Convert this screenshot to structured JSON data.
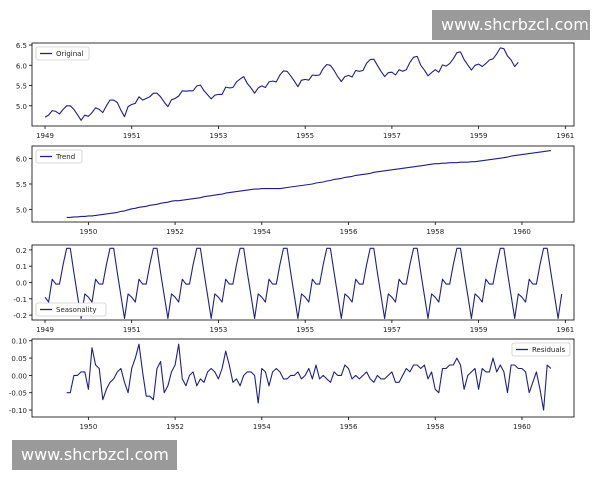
{
  "watermarks": {
    "top": "www.shcrbzcl.com",
    "bottom": "www.shcrbzcl.com"
  },
  "colors": {
    "line": "#1f1f8a",
    "axis": "#000000",
    "background": "#ffffff",
    "watermark": "#9a9a9a"
  },
  "chart_data": [
    {
      "type": "line",
      "legend": "Original",
      "legend_position": "upper-left",
      "x_start": 1949.0,
      "x_step": 0.08333,
      "xlim": [
        1948.7,
        1961.2
      ],
      "ylim": [
        4.5,
        6.55
      ],
      "xticks": [
        1949,
        1951,
        1953,
        1955,
        1957,
        1959,
        1961
      ],
      "xtick_labels": [
        "1949",
        "1951",
        "1953",
        "1955",
        "1957",
        "1959",
        "1961"
      ],
      "yticks": [
        5.0,
        5.5,
        6.0,
        6.5
      ],
      "ytick_labels": [
        "5.0",
        "5.5",
        "6.0",
        "6.5"
      ],
      "values": [
        4.72,
        4.77,
        4.88,
        4.86,
        4.8,
        4.91,
        5.0,
        5.0,
        4.91,
        4.78,
        4.64,
        4.77,
        4.74,
        4.83,
        4.95,
        4.91,
        4.83,
        5.0,
        5.14,
        5.14,
        5.08,
        4.89,
        4.73,
        4.98,
        5.03,
        5.06,
        5.22,
        5.14,
        5.18,
        5.22,
        5.31,
        5.31,
        5.22,
        5.09,
        4.98,
        5.15,
        5.18,
        5.24,
        5.37,
        5.36,
        5.37,
        5.37,
        5.49,
        5.51,
        5.37,
        5.27,
        5.17,
        5.26,
        5.28,
        5.28,
        5.46,
        5.44,
        5.45,
        5.59,
        5.66,
        5.72,
        5.55,
        5.44,
        5.31,
        5.44,
        5.49,
        5.45,
        5.59,
        5.61,
        5.59,
        5.76,
        5.86,
        5.85,
        5.74,
        5.61,
        5.47,
        5.63,
        5.65,
        5.63,
        5.76,
        5.75,
        5.76,
        5.92,
        6.02,
        6.0,
        5.87,
        5.72,
        5.6,
        5.72,
        5.75,
        5.71,
        5.87,
        5.85,
        5.87,
        6.05,
        6.14,
        6.15,
        6.0,
        5.85,
        5.72,
        5.82,
        5.83,
        5.76,
        5.89,
        5.85,
        5.89,
        6.07,
        6.2,
        6.22,
        6.0,
        5.88,
        5.74,
        5.82,
        5.89,
        5.83,
        6.01,
        5.98,
        6.04,
        6.16,
        6.31,
        6.33,
        6.14,
        6.01,
        5.88,
        6.0,
        6.03,
        5.97,
        6.04,
        6.13,
        6.16,
        6.28,
        6.43,
        6.41,
        6.23,
        6.13,
        5.97,
        6.07
      ]
    },
    {
      "type": "line",
      "legend": "Trend",
      "legend_position": "upper-left",
      "x_start": 1949.5,
      "x_step": 0.08333,
      "xlim": [
        1948.7,
        1961.2
      ],
      "ylim": [
        4.75,
        6.25
      ],
      "xticks": [
        1950,
        1952,
        1954,
        1956,
        1958,
        1960
      ],
      "xtick_labels": [
        "1950",
        "1952",
        "1954",
        "1956",
        "1958",
        "1960"
      ],
      "yticks": [
        5.0,
        5.5,
        6.0
      ],
      "ytick_labels": [
        "5.0",
        "5.5",
        "6.0"
      ],
      "values": [
        4.84,
        4.84,
        4.85,
        4.85,
        4.86,
        4.86,
        4.87,
        4.87,
        4.88,
        4.89,
        4.9,
        4.91,
        4.92,
        4.93,
        4.94,
        4.96,
        4.97,
        4.99,
        5.01,
        5.02,
        5.04,
        5.05,
        5.06,
        5.08,
        5.09,
        5.1,
        5.12,
        5.13,
        5.14,
        5.16,
        5.17,
        5.17,
        5.18,
        5.19,
        5.2,
        5.21,
        5.22,
        5.23,
        5.25,
        5.26,
        5.27,
        5.28,
        5.29,
        5.3,
        5.32,
        5.33,
        5.34,
        5.35,
        5.36,
        5.37,
        5.38,
        5.39,
        5.4,
        5.4,
        5.41,
        5.41,
        5.41,
        5.41,
        5.41,
        5.41,
        5.42,
        5.43,
        5.44,
        5.45,
        5.46,
        5.47,
        5.48,
        5.49,
        5.5,
        5.52,
        5.53,
        5.54,
        5.56,
        5.57,
        5.59,
        5.6,
        5.61,
        5.63,
        5.64,
        5.65,
        5.67,
        5.68,
        5.69,
        5.7,
        5.71,
        5.73,
        5.74,
        5.75,
        5.76,
        5.77,
        5.78,
        5.79,
        5.8,
        5.81,
        5.82,
        5.83,
        5.84,
        5.85,
        5.86,
        5.87,
        5.88,
        5.89,
        5.9,
        5.9,
        5.91,
        5.91,
        5.92,
        5.92,
        5.92,
        5.93,
        5.93,
        5.93,
        5.94,
        5.94,
        5.95,
        5.96,
        5.97,
        5.98,
        5.99,
        6.0,
        6.01,
        6.02,
        6.03,
        6.05,
        6.06,
        6.07,
        6.08,
        6.09,
        6.1,
        6.11,
        6.12,
        6.13,
        6.14,
        6.15,
        6.16
      ]
    },
    {
      "type": "line",
      "legend": "Seasonality",
      "legend_position": "lower-left",
      "x_start": 1949.0,
      "x_step": 0.08333,
      "xlim": [
        1948.7,
        1961.2
      ],
      "ylim": [
        -0.23,
        0.23
      ],
      "xticks": [
        1949,
        1951,
        1953,
        1955,
        1957,
        1959,
        1961
      ],
      "xtick_labels": [
        "1949",
        "1951",
        "1953",
        "1955",
        "1957",
        "1959",
        "1961"
      ],
      "yticks": [
        -0.2,
        -0.1,
        0.0,
        0.1,
        0.2
      ],
      "ytick_labels": [
        "-0.2",
        "-0.1",
        "0.0",
        "0.1",
        "0.2"
      ],
      "season_pattern": [
        -0.09,
        -0.12,
        0.02,
        -0.01,
        -0.01,
        0.11,
        0.21,
        0.21,
        0.06,
        -0.08,
        -0.22,
        -0.07
      ],
      "season_repeats": 12
    },
    {
      "type": "line",
      "legend": "Residuals",
      "legend_position": "upper-right",
      "x_start": 1949.5,
      "x_step": 0.08333,
      "xlim": [
        1948.7,
        1961.2
      ],
      "ylim": [
        -0.12,
        0.105
      ],
      "xticks": [
        1950,
        1952,
        1954,
        1956,
        1958,
        1960
      ],
      "xtick_labels": [
        "1950",
        "1952",
        "1954",
        "1956",
        "1958",
        "1960"
      ],
      "yticks": [
        -0.1,
        -0.05,
        0.0,
        0.05,
        0.1
      ],
      "ytick_labels": [
        "-0.10",
        "-0.05",
        "0.00",
        "0.05",
        "0.10"
      ],
      "values": [
        -0.05,
        -0.05,
        0.0,
        0.0,
        0.01,
        0.01,
        -0.04,
        0.08,
        0.03,
        0.02,
        -0.07,
        -0.04,
        -0.02,
        -0.01,
        0.01,
        0.02,
        -0.02,
        -0.05,
        0.02,
        0.05,
        0.09,
        0.01,
        -0.06,
        -0.06,
        -0.07,
        0.02,
        0.04,
        -0.05,
        -0.03,
        0.01,
        0.03,
        0.09,
        -0.01,
        -0.03,
        0.0,
        0.01,
        -0.03,
        -0.01,
        -0.02,
        0.01,
        0.02,
        0.01,
        -0.01,
        0.02,
        0.07,
        0.03,
        -0.02,
        -0.01,
        -0.03,
        0.0,
        0.01,
        0.01,
        0.0,
        -0.08,
        0.02,
        0.01,
        -0.03,
        0.01,
        0.02,
        0.01,
        -0.01,
        -0.01,
        0.0,
        0.0,
        0.01,
        -0.01,
        0.0,
        0.02,
        -0.01,
        0.03,
        -0.01,
        0.0,
        -0.01,
        -0.02,
        0.01,
        0.0,
        0.0,
        0.03,
        0.02,
        -0.01,
        0.0,
        -0.01,
        0.0,
        0.01,
        -0.01,
        -0.02,
        0.0,
        -0.01,
        -0.01,
        0.0,
        0.01,
        -0.02,
        -0.02,
        0.0,
        0.02,
        0.01,
        0.03,
        0.03,
        0.02,
        0.03,
        -0.01,
        0.01,
        -0.04,
        -0.05,
        0.02,
        0.02,
        0.03,
        0.03,
        0.05,
        0.03,
        -0.04,
        0.0,
        0.01,
        0.02,
        -0.04,
        0.02,
        0.01,
        0.01,
        0.05,
        0.01,
        0.03,
        0.01,
        -0.05,
        0.03,
        0.03,
        0.02,
        0.02,
        0.01,
        -0.05,
        -0.02,
        0.01,
        -0.04,
        -0.1,
        0.03,
        0.02
      ]
    }
  ]
}
